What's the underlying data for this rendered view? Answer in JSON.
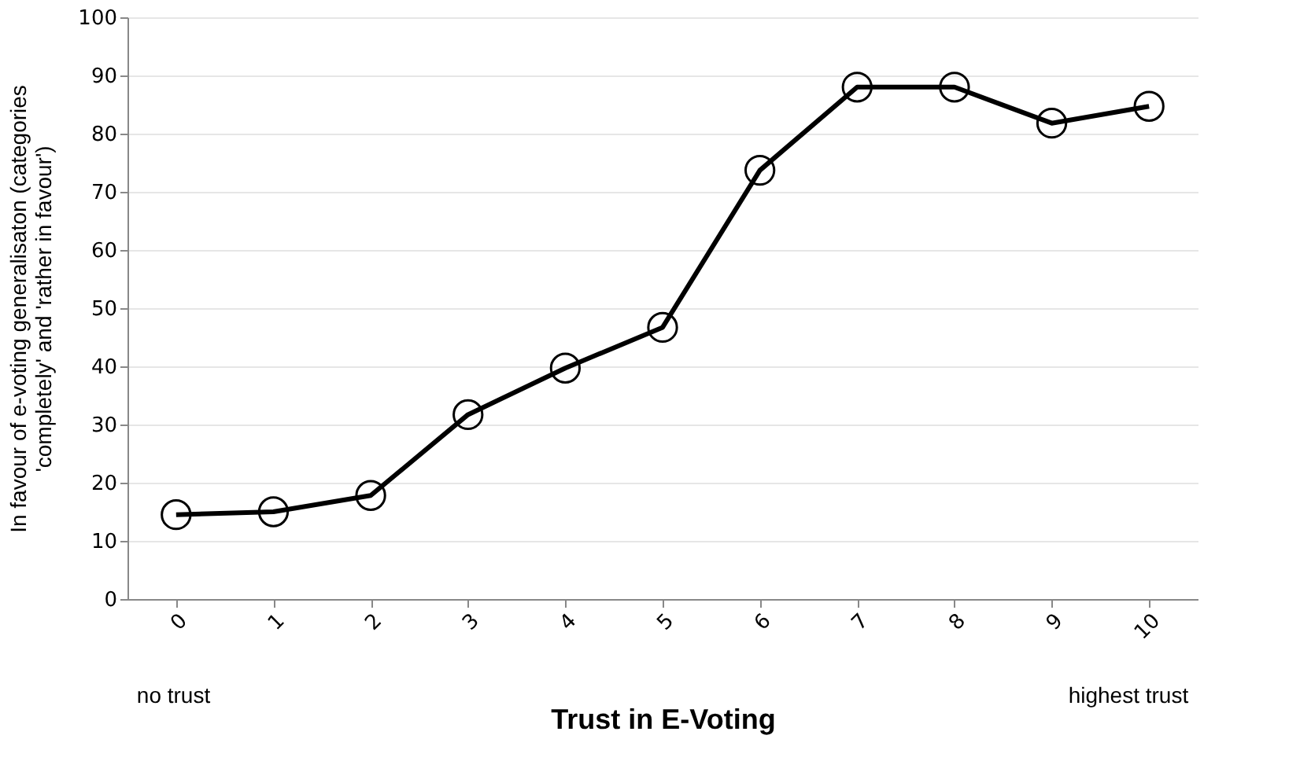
{
  "chart_data": {
    "type": "line",
    "xlabel": "Trust in E-Voting",
    "ylabel": "In favour of e-voting generalisaton (categories 'completely' and 'rather in favour')",
    "categories": [
      "0",
      "1",
      "2",
      "3",
      "4",
      "5",
      "6",
      "7",
      "8",
      "9",
      "10"
    ],
    "series": [
      {
        "color": "#000000",
        "values": [
          14.5,
          15,
          17.8,
          31.7,
          39.7,
          46.7,
          73.7,
          88,
          88,
          81.8,
          84.7
        ]
      }
    ],
    "ylim": [
      0,
      100
    ],
    "yticks": [
      0,
      10,
      20,
      30,
      40,
      50,
      60,
      70,
      80,
      90,
      100
    ],
    "grid": "y",
    "marker": "circle",
    "line_style": "solid",
    "annotations": [
      "no trust",
      "highest trust"
    ]
  }
}
